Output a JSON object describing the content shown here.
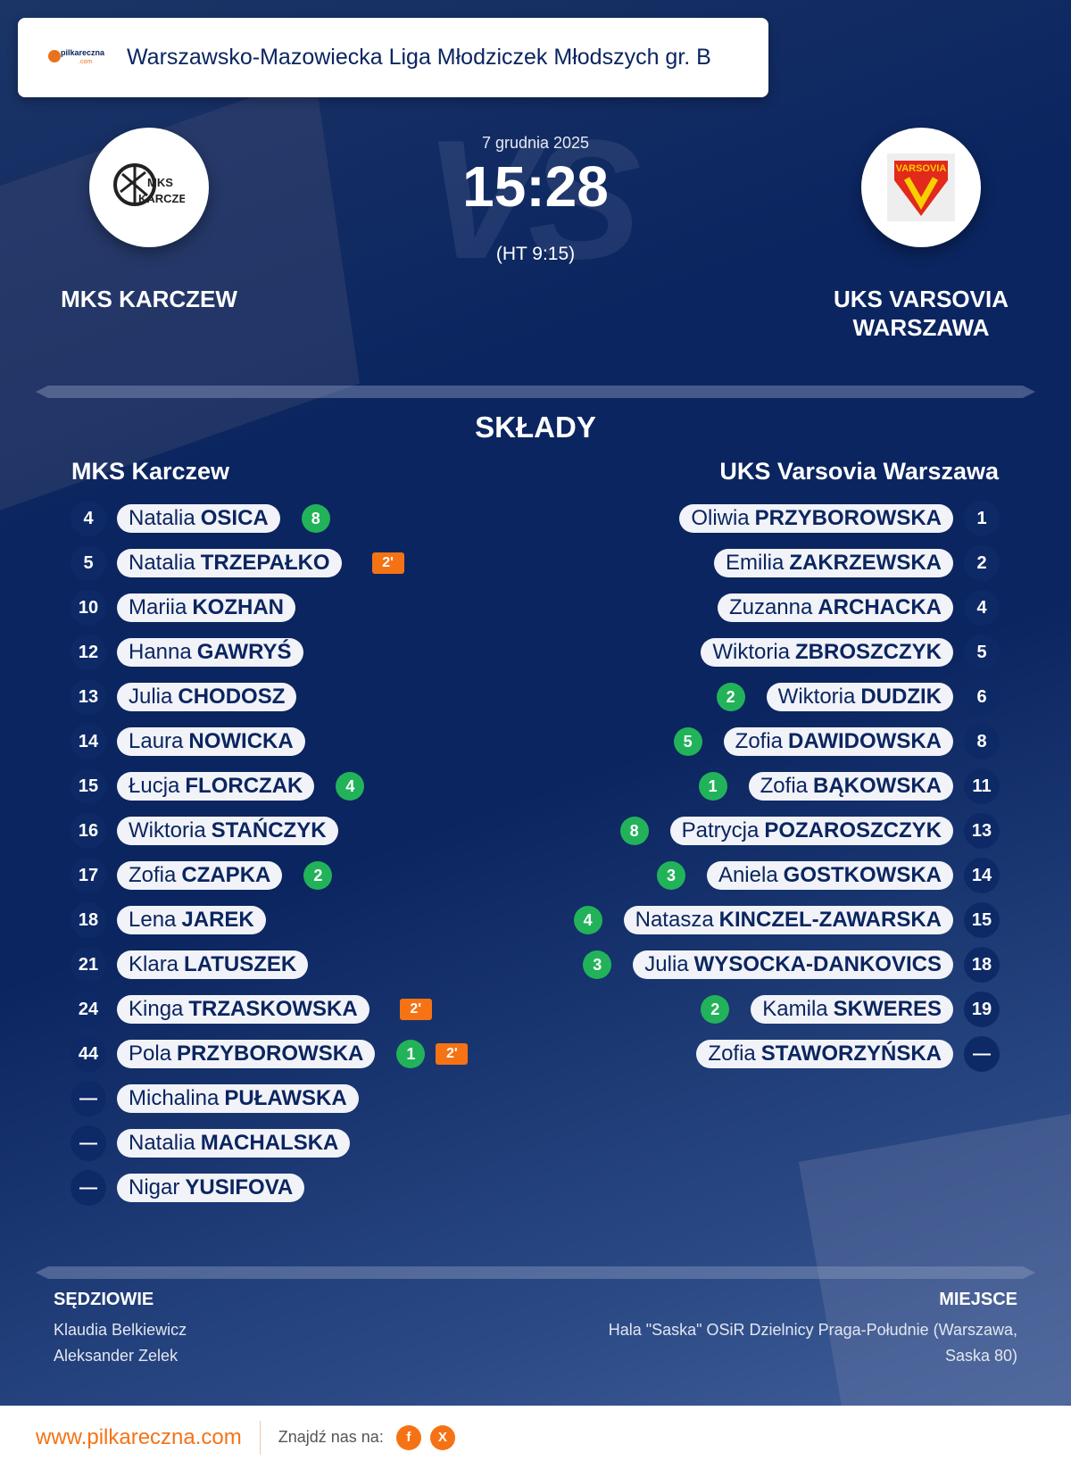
{
  "header": {
    "logo_text": "pilkareczna.com",
    "league": "Warszawsko-Mazowiecka Liga Młodziczek Młodszych gr. B"
  },
  "match": {
    "date": "7 grudnia 2025",
    "score": "15:28",
    "halftime": "(HT 9:15)",
    "vs_watermark": "VS",
    "home": {
      "name": "MKS KARCZEW",
      "crest_text": "MKS KARCZEW"
    },
    "away": {
      "name": "UKS VARSOVIA WARSZAWA",
      "crest_text": "VARSOVIA"
    }
  },
  "lineups": {
    "title": "SKŁADY",
    "home": {
      "team": "MKS Karczew",
      "players": [
        {
          "num": "4",
          "first": "Natalia",
          "last": "OSICA",
          "goals": "8",
          "pen": null
        },
        {
          "num": "5",
          "first": "Natalia",
          "last": "TRZEPAŁKO",
          "goals": null,
          "pen": "2'"
        },
        {
          "num": "10",
          "first": "Mariia",
          "last": "KOZHAN",
          "goals": null,
          "pen": null
        },
        {
          "num": "12",
          "first": "Hanna",
          "last": "GAWRYŚ",
          "goals": null,
          "pen": null
        },
        {
          "num": "13",
          "first": "Julia",
          "last": "CHODOSZ",
          "goals": null,
          "pen": null
        },
        {
          "num": "14",
          "first": "Laura",
          "last": "NOWICKA",
          "goals": null,
          "pen": null
        },
        {
          "num": "15",
          "first": "Łucja",
          "last": "FLORCZAK",
          "goals": "4",
          "pen": null
        },
        {
          "num": "16",
          "first": "Wiktoria",
          "last": "STAŃCZYK",
          "goals": null,
          "pen": null
        },
        {
          "num": "17",
          "first": "Zofia",
          "last": "CZAPKA",
          "goals": "2",
          "pen": null
        },
        {
          "num": "18",
          "first": "Lena",
          "last": "JAREK",
          "goals": null,
          "pen": null
        },
        {
          "num": "21",
          "first": "Klara",
          "last": "LATUSZEK",
          "goals": null,
          "pen": null
        },
        {
          "num": "24",
          "first": "Kinga",
          "last": "TRZASKOWSKA",
          "goals": null,
          "pen": "2'"
        },
        {
          "num": "44",
          "first": "Pola",
          "last": "PRZYBOROWSKA",
          "goals": "1",
          "pen": "2'"
        },
        {
          "num": "—",
          "first": "Michalina",
          "last": "PUŁAWSKA",
          "goals": null,
          "pen": null
        },
        {
          "num": "—",
          "first": "Natalia",
          "last": "MACHALSKA",
          "goals": null,
          "pen": null
        },
        {
          "num": "—",
          "first": "Nigar",
          "last": "YUSIFOVA",
          "goals": null,
          "pen": null
        }
      ]
    },
    "away": {
      "team": "UKS Varsovia Warszawa",
      "players": [
        {
          "num": "1",
          "first": "Oliwia",
          "last": "PRZYBOROWSKA",
          "goals": null
        },
        {
          "num": "2",
          "first": "Emilia",
          "last": "ZAKRZEWSKA",
          "goals": null
        },
        {
          "num": "4",
          "first": "Zuzanna",
          "last": "ARCHACKA",
          "goals": null
        },
        {
          "num": "5",
          "first": "Wiktoria",
          "last": "ZBROSZCZYK",
          "goals": null
        },
        {
          "num": "6",
          "first": "Wiktoria",
          "last": "DUDZIK",
          "goals": "2"
        },
        {
          "num": "8",
          "first": "Zofia",
          "last": "DAWIDOWSKA",
          "goals": "5"
        },
        {
          "num": "11",
          "first": "Zofia",
          "last": "BĄKOWSKA",
          "goals": "1"
        },
        {
          "num": "13",
          "first": "Patrycja",
          "last": "POZAROSZCZYK",
          "goals": "8"
        },
        {
          "num": "14",
          "first": "Aniela",
          "last": "GOSTKOWSKA",
          "goals": "3"
        },
        {
          "num": "15",
          "first": "Natasza",
          "last": "KINCZEL-ZAWARSKA",
          "goals": "4"
        },
        {
          "num": "18",
          "first": "Julia",
          "last": "WYSOCKA-DANKOVICS",
          "goals": "3"
        },
        {
          "num": "19",
          "first": "Kamila",
          "last": "SKWERES",
          "goals": "2"
        },
        {
          "num": "—",
          "first": "Zofia",
          "last": "STAWORZYŃSKA",
          "goals": null
        }
      ]
    }
  },
  "officials": {
    "title": "SĘDZIOWIE",
    "names": [
      "Klaudia Belkiewicz",
      "Aleksander Zelek"
    ]
  },
  "venue": {
    "title": "MIEJSCE",
    "lines": [
      "Hala \"Saska\" OSiR Dzielnicy Praga-Południe (Warszawa,",
      "Saska 80)"
    ]
  },
  "footer": {
    "url": "www.pilkareczna.com",
    "find_us": "Znajdź nas na:",
    "social": [
      {
        "icon": "facebook-icon",
        "label": "f"
      },
      {
        "icon": "x-icon",
        "label": "X"
      }
    ]
  },
  "colors": {
    "background": "#0b2560",
    "goal": "#22b35a",
    "penalty": "#f57315",
    "accent": "#f57315"
  }
}
